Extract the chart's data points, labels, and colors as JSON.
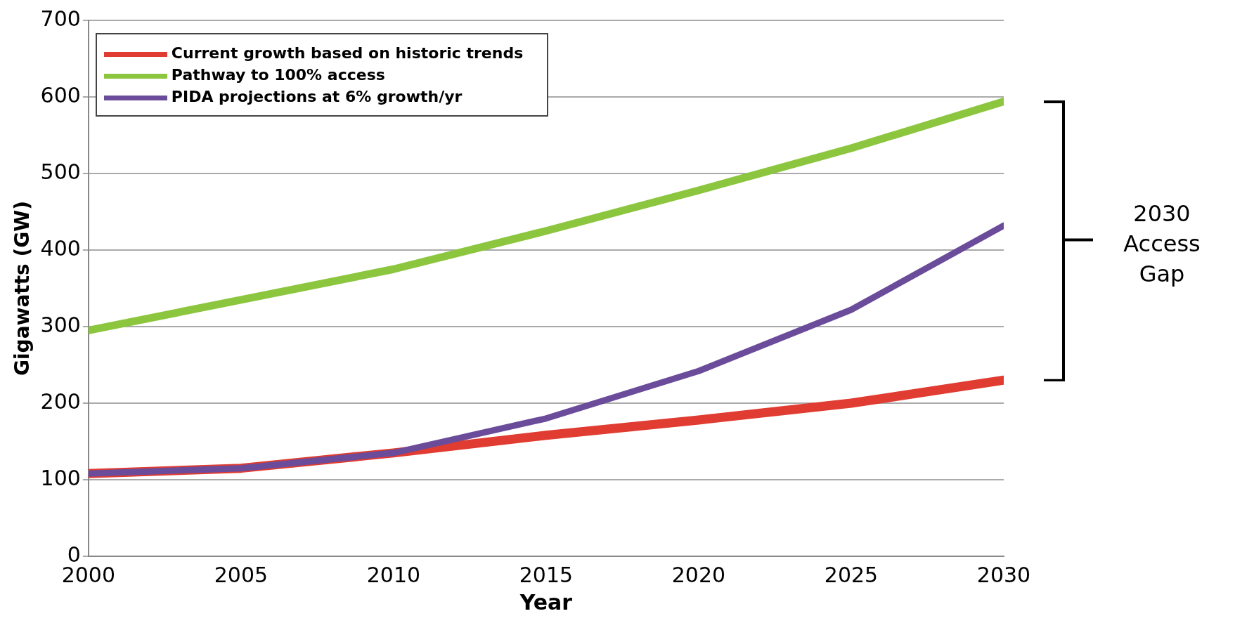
{
  "chart_data": {
    "type": "line",
    "xlabel": "Year",
    "ylabel": "Gigawatts (GW)",
    "x": [
      2000,
      2005,
      2010,
      2015,
      2020,
      2025,
      2030
    ],
    "series": [
      {
        "name": "Current growth based on historic trends",
        "color": "#e03c31",
        "values": [
          108,
          115,
          135,
          158,
          178,
          200,
          230
        ]
      },
      {
        "name": "Pathway to 100% access",
        "color": "#8cc63f",
        "values": [
          295,
          335,
          375,
          425,
          478,
          533,
          594
        ]
      },
      {
        "name": "PIDA projections at 6% growth/yr",
        "color": "#6b4c9a",
        "values": [
          108,
          115,
          135,
          180,
          242,
          322,
          432
        ]
      }
    ],
    "xlim": [
      2000,
      2030
    ],
    "xticks": [
      2000,
      2005,
      2010,
      2015,
      2020,
      2025,
      2030
    ],
    "ylim": [
      0,
      700
    ],
    "yticks": [
      0,
      100,
      200,
      300,
      400,
      500,
      600,
      700
    ],
    "grid": "y",
    "legend": "top left",
    "marker": "none",
    "line_style": "solid",
    "annotations": [
      "2030 Access Gap"
    ]
  }
}
